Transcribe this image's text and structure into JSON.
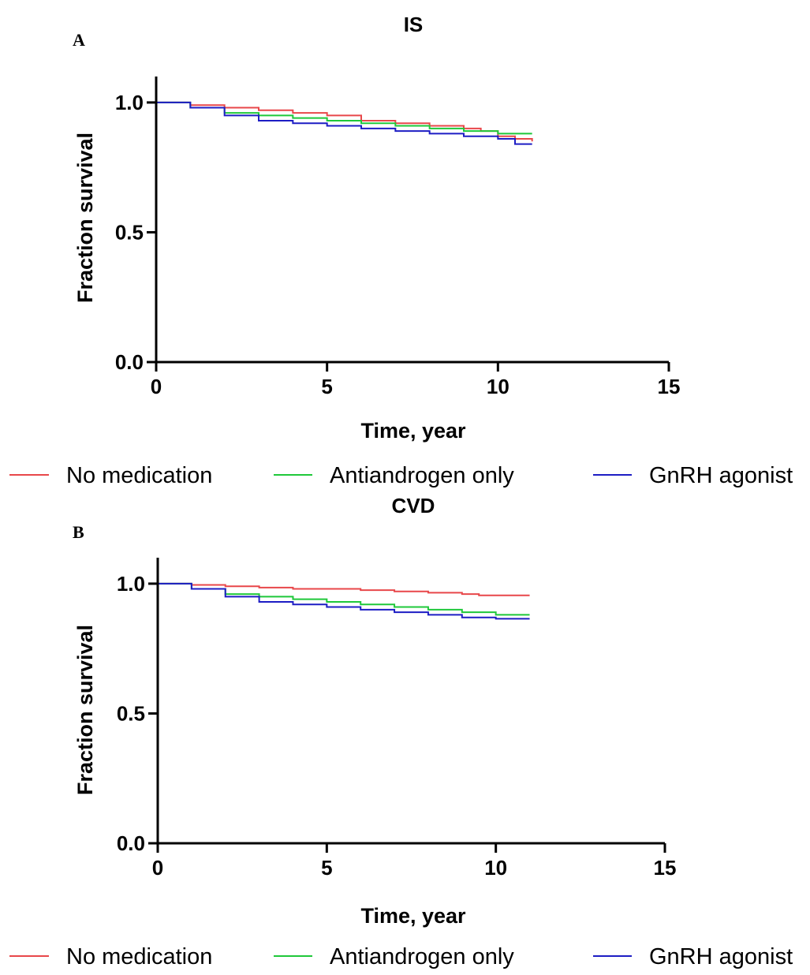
{
  "chart_data": [
    {
      "type": "line",
      "panel_letter": "A",
      "title": "IS",
      "xlabel": "Time, year",
      "ylabel": "Fraction survival",
      "xlim": [
        0,
        15
      ],
      "ylim": [
        0,
        1.1
      ],
      "xticks": [
        0,
        5,
        10,
        15
      ],
      "yticks": [
        0.0,
        0.5,
        1.0
      ],
      "xtick_labels": [
        "0",
        "5",
        "10",
        "15"
      ],
      "ytick_labels": [
        "0.0",
        "0.5",
        "1.0"
      ],
      "legend_position": "bottom",
      "series": [
        {
          "name": "No medication",
          "color": "#e8474a",
          "x": [
            0,
            0.5,
            1,
            2,
            3,
            4,
            5,
            6,
            7,
            8,
            9,
            9.5,
            10,
            10.5,
            11
          ],
          "y": [
            1.0,
            1.0,
            0.99,
            0.98,
            0.97,
            0.96,
            0.95,
            0.93,
            0.92,
            0.91,
            0.9,
            0.89,
            0.87,
            0.86,
            0.85
          ]
        },
        {
          "name": "Antiandrogen only",
          "color": "#1fc83a",
          "x": [
            0,
            0.5,
            1,
            2,
            3,
            4,
            5,
            6,
            7,
            8,
            9,
            10,
            11
          ],
          "y": [
            1.0,
            1.0,
            0.98,
            0.96,
            0.95,
            0.94,
            0.93,
            0.92,
            0.91,
            0.9,
            0.89,
            0.88,
            0.88
          ]
        },
        {
          "name": "GnRH agonist",
          "color": "#1d1dc4",
          "x": [
            0,
            0.5,
            1,
            2,
            3,
            4,
            5,
            6,
            7,
            8,
            9,
            10,
            10.5,
            11
          ],
          "y": [
            1.0,
            1.0,
            0.98,
            0.95,
            0.93,
            0.92,
            0.91,
            0.9,
            0.89,
            0.88,
            0.87,
            0.86,
            0.84,
            0.84
          ]
        }
      ]
    },
    {
      "type": "line",
      "panel_letter": "B",
      "title": "CVD",
      "xlabel": "Time, year",
      "ylabel": "Fraction survival",
      "xlim": [
        0,
        15
      ],
      "ylim": [
        0,
        1.1
      ],
      "xticks": [
        0,
        5,
        10,
        15
      ],
      "yticks": [
        0.0,
        0.5,
        1.0
      ],
      "xtick_labels": [
        "0",
        "5",
        "10",
        "15"
      ],
      "ytick_labels": [
        "0.0",
        "0.5",
        "1.0"
      ],
      "legend_position": "bottom",
      "series": [
        {
          "name": "No medication",
          "color": "#e8474a",
          "x": [
            0,
            0.5,
            1,
            2,
            3,
            4,
            5,
            6,
            7,
            8,
            9,
            9.5,
            10,
            11
          ],
          "y": [
            1.0,
            1.0,
            0.995,
            0.99,
            0.985,
            0.98,
            0.98,
            0.975,
            0.97,
            0.965,
            0.96,
            0.955,
            0.955,
            0.955
          ]
        },
        {
          "name": "Antiandrogen only",
          "color": "#1fc83a",
          "x": [
            0,
            0.5,
            1,
            2,
            3,
            4,
            5,
            6,
            7,
            8,
            9,
            10,
            11
          ],
          "y": [
            1.0,
            1.0,
            0.98,
            0.96,
            0.95,
            0.94,
            0.93,
            0.92,
            0.91,
            0.9,
            0.89,
            0.88,
            0.88
          ]
        },
        {
          "name": "GnRH agonist",
          "color": "#1d1dc4",
          "x": [
            0,
            0.5,
            1,
            2,
            3,
            4,
            5,
            6,
            7,
            8,
            9,
            10,
            11
          ],
          "y": [
            1.0,
            1.0,
            0.98,
            0.95,
            0.93,
            0.92,
            0.91,
            0.9,
            0.89,
            0.88,
            0.87,
            0.865,
            0.865
          ]
        }
      ]
    }
  ]
}
